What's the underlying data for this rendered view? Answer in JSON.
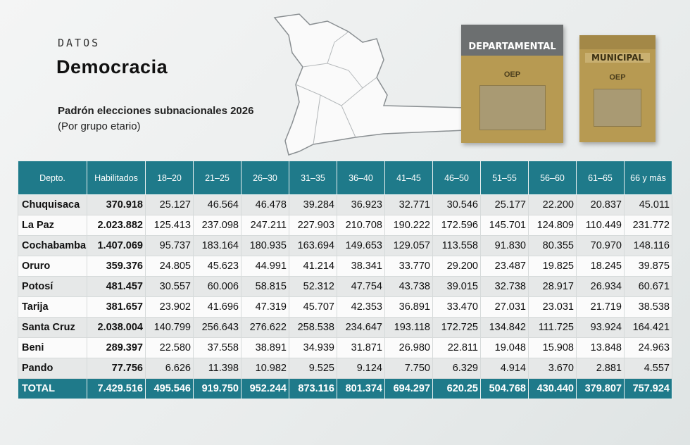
{
  "header": {
    "kicker": "DATOS",
    "title": "Democracia",
    "subtitle": "Padrón elecciones subnacionales 2026",
    "note": "(Por grupo etario)"
  },
  "ballot_boxes": [
    {
      "label": "DEPARTAMENTAL",
      "logo": "OEP"
    },
    {
      "label": "MUNICIPAL",
      "logo": "OEP"
    }
  ],
  "table": {
    "header": [
      "Depto.",
      "Habilitados",
      "18–20",
      "21–25",
      "26–30",
      "31–35",
      "36–40",
      "41–45",
      "46–50",
      "51–55",
      "56–60",
      "61–65",
      "66 y más"
    ],
    "rows": [
      [
        "Chuquisaca",
        "370.918",
        "25.127",
        "46.564",
        "46.478",
        "39.284",
        "36.923",
        "32.771",
        "30.546",
        "25.177",
        "22.200",
        "20.837",
        "45.011"
      ],
      [
        "La Paz",
        "2.023.882",
        "125.413",
        "237.098",
        "247.211",
        "227.903",
        "210.708",
        "190.222",
        "172.596",
        "145.701",
        "124.809",
        "110.449",
        "231.772"
      ],
      [
        "Cochabamba",
        "1.407.069",
        "95.737",
        "183.164",
        "180.935",
        "163.694",
        "149.653",
        "129.057",
        "113.558",
        "91.830",
        "80.355",
        "70.970",
        "148.116"
      ],
      [
        "Oruro",
        "359.376",
        "24.805",
        "45.623",
        "44.991",
        "41.214",
        "38.341",
        "33.770",
        "29.200",
        "23.487",
        "19.825",
        "18.245",
        "39.875"
      ],
      [
        "Potosí",
        "481.457",
        "30.557",
        "60.006",
        "58.815",
        "52.312",
        "47.754",
        "43.738",
        "39.015",
        "32.738",
        "28.917",
        "26.934",
        "60.671"
      ],
      [
        "Tarija",
        "381.657",
        "23.902",
        "41.696",
        "47.319",
        "45.707",
        "42.353",
        "36.891",
        "33.470",
        "27.031",
        "23.031",
        "21.719",
        "38.538"
      ],
      [
        "Santa Cruz",
        "2.038.004",
        "140.799",
        "256.643",
        "276.622",
        "258.538",
        "234.647",
        "193.118",
        "172.725",
        "134.842",
        "111.725",
        "93.924",
        "164.421"
      ],
      [
        "Beni",
        "289.397",
        "22.580",
        "37.558",
        "38.891",
        "34.939",
        "31.871",
        "26.980",
        "22.811",
        "19.048",
        "15.908",
        "13.848",
        "24.963"
      ],
      [
        "Pando",
        "77.756",
        "6.626",
        "11.398",
        "10.982",
        "9.525",
        "9.124",
        "7.750",
        "6.329",
        "4.914",
        "3.670",
        "2.881",
        "4.557"
      ]
    ],
    "total": [
      "TOTAL",
      "7.429.516",
      "495.546",
      "919.750",
      "952.244",
      "873.116",
      "801.374",
      "694.297",
      "620.25",
      "504.768",
      "430.440",
      "379.807",
      "757.924"
    ]
  }
}
